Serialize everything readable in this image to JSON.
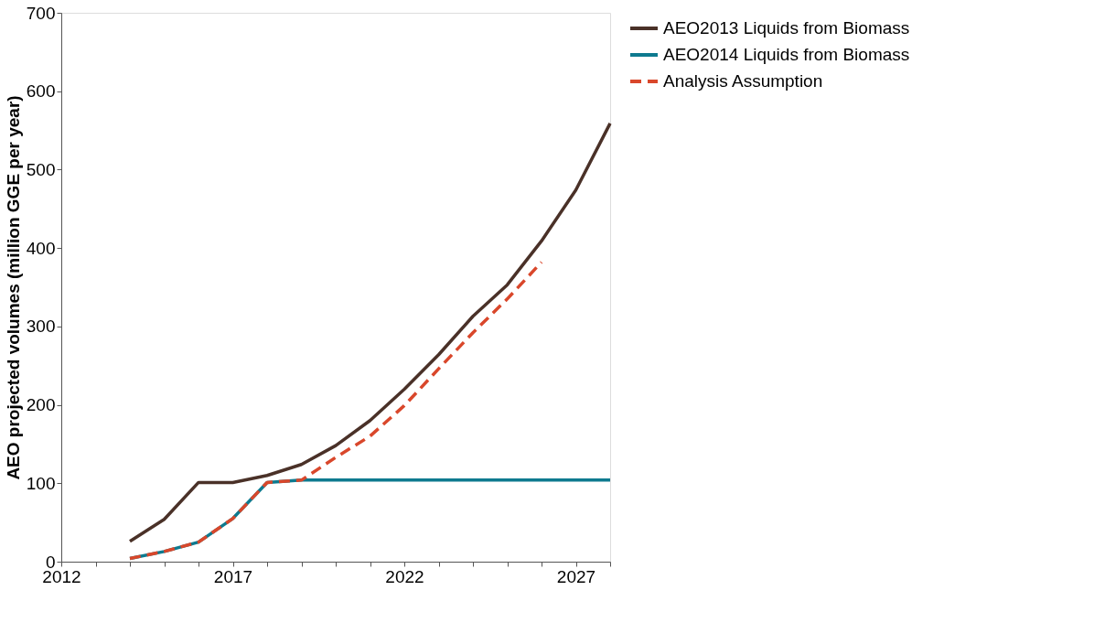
{
  "chart_data": {
    "type": "line",
    "ylabel": "AEO projected volumes (million GGE per year)",
    "x": [
      2014,
      2015,
      2016,
      2017,
      2018,
      2019,
      2020,
      2021,
      2022,
      2023,
      2024,
      2025,
      2026,
      2027,
      2028
    ],
    "series": [
      {
        "name": "AEO2013 Liquids from Biomass",
        "color": "#4a3128",
        "line_style": "solid",
        "values": [
          26,
          54,
          101,
          101,
          110,
          124,
          148,
          180,
          220,
          264,
          313,
          353,
          409,
          474,
          559
        ]
      },
      {
        "name": "AEO2014 Liquids from Biomass",
        "color": "#0e7a8f",
        "line_style": "solid",
        "values": [
          4,
          13,
          25,
          55,
          101,
          104,
          104,
          104,
          104,
          104,
          104,
          104,
          104,
          104,
          104
        ]
      },
      {
        "name": "Analysis Assumption",
        "color": "#d9472b",
        "line_style": "dashed",
        "values": [
          4,
          13,
          25,
          55,
          101,
          104,
          133,
          160,
          199,
          246,
          292,
          335,
          382,
          null,
          null
        ]
      }
    ],
    "xlim": [
      2012,
      2028
    ],
    "xticks": [
      2012,
      {
        "value": 2013,
        "label": null
      },
      {
        "value": 2014,
        "label": null
      },
      {
        "value": 2015,
        "label": null
      },
      {
        "value": 2016,
        "label": null
      },
      2017,
      {
        "value": 2018,
        "label": null
      },
      {
        "value": 2019,
        "label": null
      },
      {
        "value": 2020,
        "label": null
      },
      {
        "value": 2021,
        "label": null
      },
      2022,
      {
        "value": 2023,
        "label": null
      },
      {
        "value": 2024,
        "label": null
      },
      {
        "value": 2025,
        "label": null
      },
      {
        "value": 2026,
        "label": null
      },
      2027,
      {
        "value": 2028,
        "label": null
      }
    ],
    "ylim": [
      0,
      700
    ],
    "yticks": [
      0,
      100,
      200,
      300,
      400,
      500,
      600,
      700
    ],
    "grid": false,
    "legend": "right",
    "marker": "none"
  }
}
